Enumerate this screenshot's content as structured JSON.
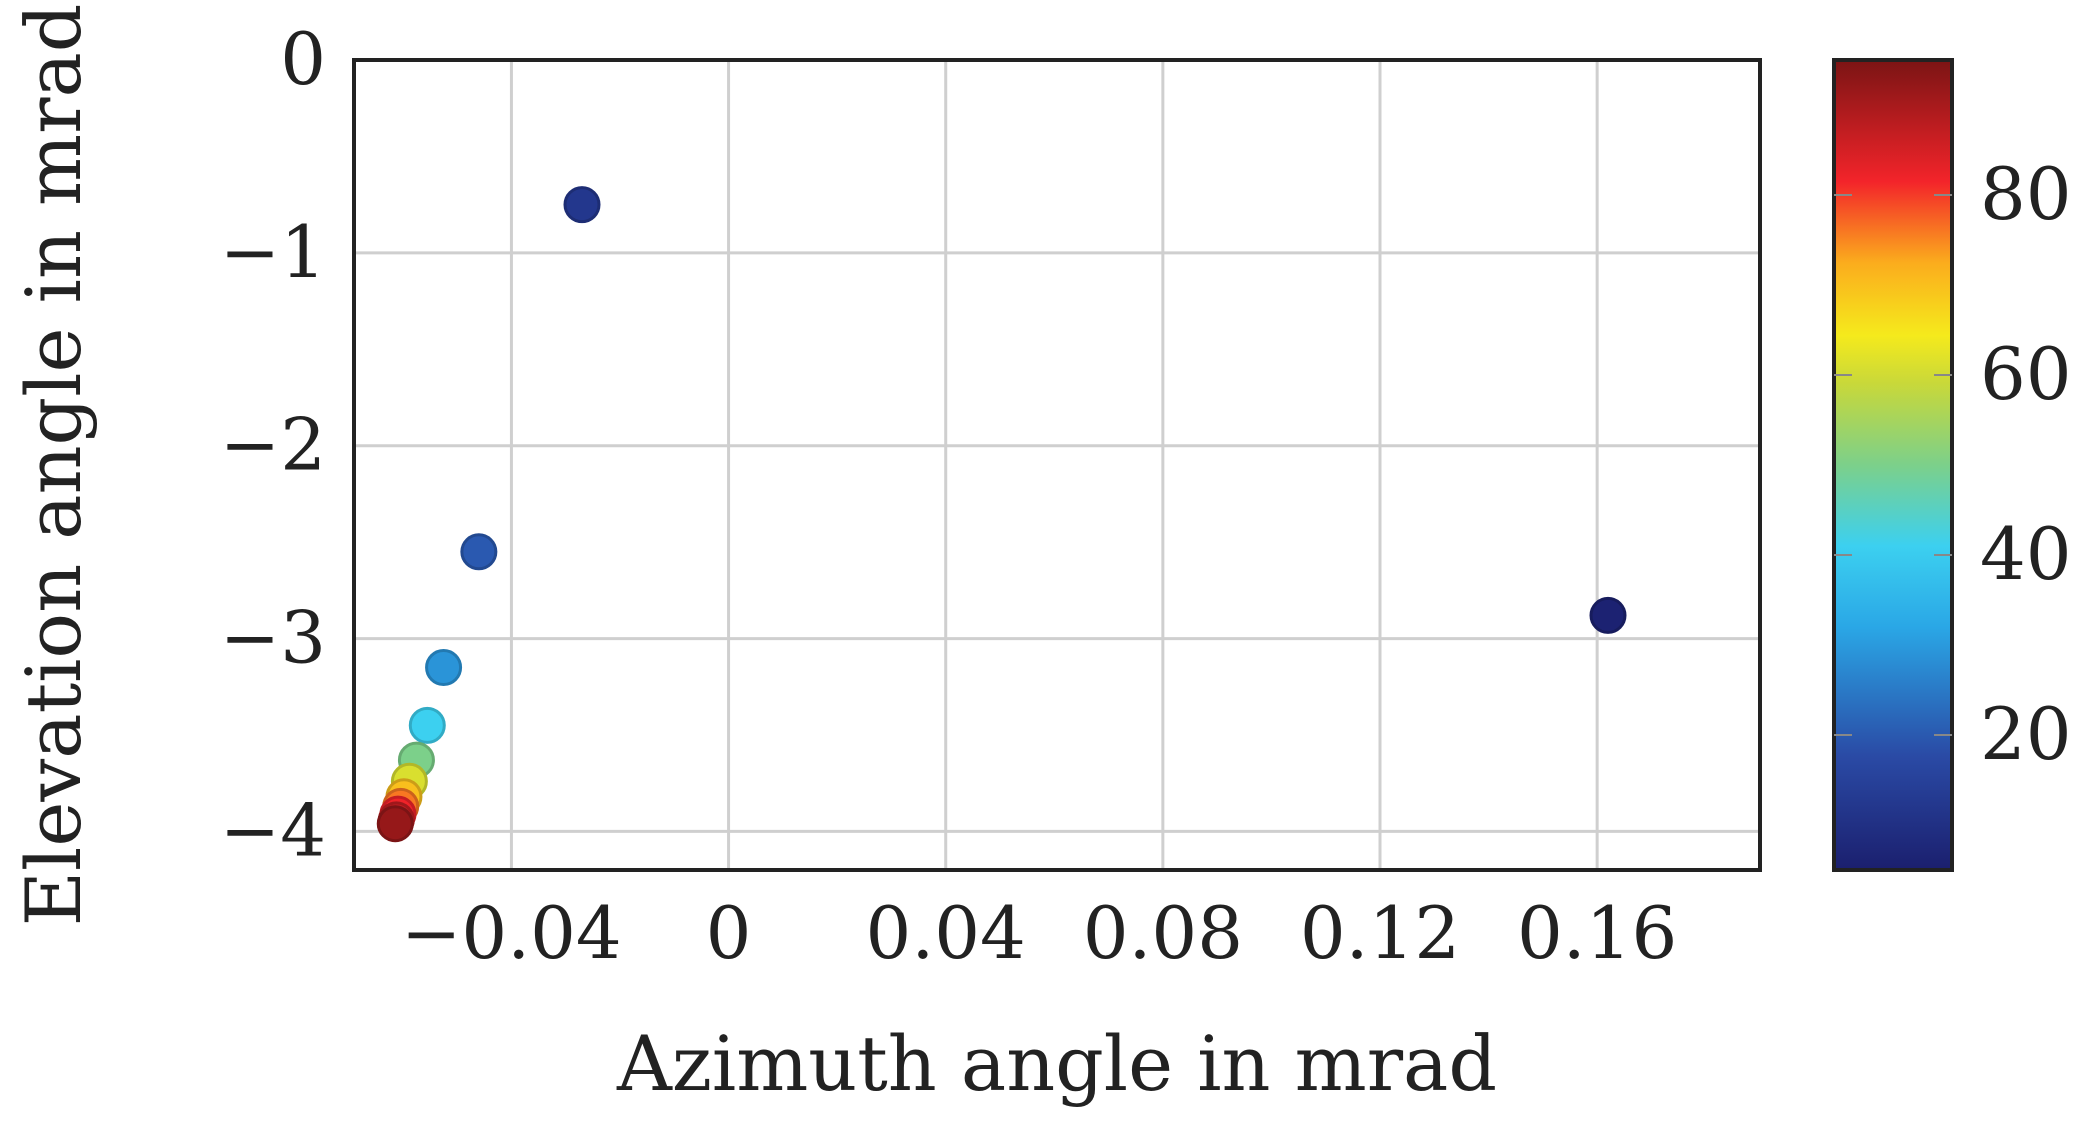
{
  "chart_data": {
    "type": "scatter",
    "title": "",
    "xlabel": "Azimuth angle in mrad",
    "ylabel": "Elevation angle in mrad",
    "xlim": [
      -0.069,
      0.19
    ],
    "ylim": [
      -4.2,
      0
    ],
    "xticks": [
      -0.04,
      0,
      0.04,
      0.08,
      0.12,
      0.16
    ],
    "xtick_labels": [
      "−0.04",
      "0",
      "0.04",
      "0.08",
      "0.12",
      "0.16"
    ],
    "yticks": [
      0,
      -1,
      -2,
      -3,
      -4
    ],
    "ytick_labels": [
      "0",
      "−1",
      "−2",
      "−3",
      "−4"
    ],
    "grid": true,
    "colorbar": {
      "colormap": "jet",
      "range": [
        5,
        95
      ],
      "ticks": [
        20,
        40,
        60,
        80
      ],
      "tick_labels": [
        "20",
        "40",
        "60",
        "80"
      ]
    },
    "points": [
      {
        "x": 0.162,
        "y": -2.88,
        "c": 6
      },
      {
        "x": -0.027,
        "y": -0.75,
        "c": 12
      },
      {
        "x": -0.046,
        "y": -2.55,
        "c": 20
      },
      {
        "x": -0.0525,
        "y": -3.15,
        "c": 29
      },
      {
        "x": -0.0555,
        "y": -3.45,
        "c": 41
      },
      {
        "x": -0.0575,
        "y": -3.63,
        "c": 50
      },
      {
        "x": -0.0588,
        "y": -3.74,
        "c": 61
      },
      {
        "x": -0.0598,
        "y": -3.82,
        "c": 70
      },
      {
        "x": -0.0604,
        "y": -3.87,
        "c": 76
      },
      {
        "x": -0.0609,
        "y": -3.91,
        "c": 82
      },
      {
        "x": -0.0612,
        "y": -3.94,
        "c": 87
      },
      {
        "x": -0.0614,
        "y": -3.96,
        "c": 92
      }
    ]
  }
}
